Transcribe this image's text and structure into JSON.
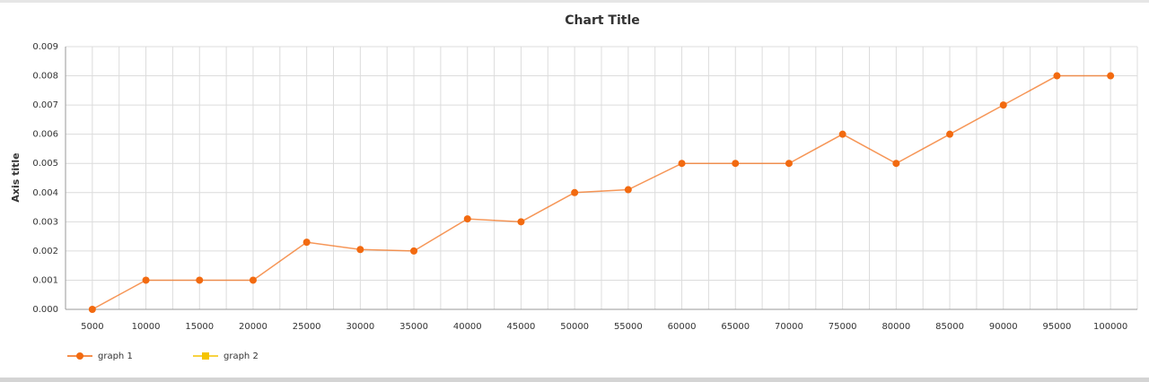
{
  "chart_data": {
    "type": "line",
    "title": "Chart Title",
    "y_label": "Axis title",
    "categories": [
      "5000",
      "10000",
      "15000",
      "20000",
      "25000",
      "30000",
      "35000",
      "40000",
      "45000",
      "50000",
      "55000",
      "60000",
      "65000",
      "70000",
      "75000",
      "80000",
      "85000",
      "90000",
      "95000",
      "100000"
    ],
    "series": [
      {
        "name": "graph 1",
        "color": "#f26a10",
        "values": [
          0,
          0.001,
          0.001,
          0.001,
          0.0023,
          0.00205,
          0.002,
          0.0031,
          0.003,
          0.004,
          0.0041,
          0.005,
          0.005,
          0.005,
          0.006,
          0.005,
          0.006,
          0.007,
          0.008,
          0.008
        ]
      },
      {
        "name": "graph 2",
        "color": "#f5c400",
        "values": [
          null,
          null,
          null,
          null,
          null,
          null,
          null,
          null,
          null,
          null,
          null,
          null,
          null,
          null,
          null,
          null,
          null,
          null,
          null,
          null
        ]
      }
    ],
    "ylim": [
      0,
      0.009
    ],
    "yticks": [
      {
        "value": 0,
        "label": "0.000"
      },
      0.001,
      0.002,
      0.003,
      0.004,
      0.005,
      0.006,
      0.007,
      0.008,
      0.009
    ],
    "grid": true,
    "legend": "bottom-left"
  }
}
